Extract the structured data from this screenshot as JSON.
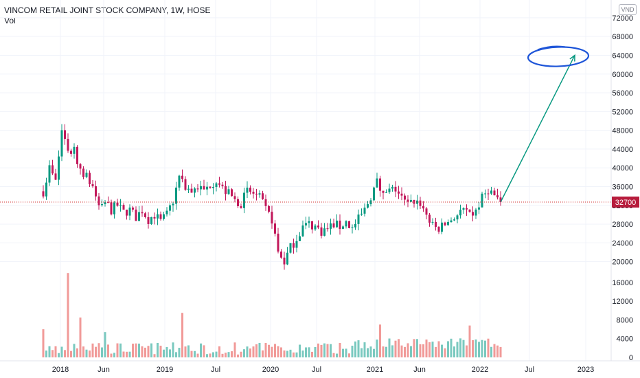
{
  "legend": {
    "title": "VINCOM RETAIL JOINT STOCK COMPANY, 1W, HOSE",
    "sub": "Vol"
  },
  "currency": "VND",
  "current_price_label": "32700",
  "colors": {
    "up": "#26a69a",
    "down": "#ef5350",
    "candle_up": "#089981",
    "candle_down": "#c2185b",
    "vol_up": "#7ac9bf",
    "vol_down": "#f19a98",
    "arrow": "#089981",
    "circle": "#1e55d8",
    "price_line": "#d32f2f",
    "grid": "#f0f3fa"
  },
  "chart_data": {
    "type": "candlestick",
    "title": "VINCOM RETAIL JOINT STOCK COMPANY, 1W, HOSE",
    "interval": "1W",
    "exchange": "HOSE",
    "y_axis": {
      "ticks": [
        20000,
        24000,
        28000,
        32000,
        36000,
        40000,
        44000,
        48000,
        52000,
        56000,
        60000,
        64000,
        68000,
        72000
      ],
      "range": [
        16000,
        72000
      ],
      "position": "right"
    },
    "volume_axis": {
      "ticks": [
        0,
        4000,
        8000,
        12000,
        16000
      ],
      "range": [
        0,
        16000
      ]
    },
    "x_axis": {
      "ticks": [
        "2018",
        "Jun",
        "2019",
        "Jul",
        "2020",
        "Jul",
        "2021",
        "Jun",
        "2022",
        "Jul",
        "2023"
      ]
    },
    "current_price": 32700,
    "price_path": [
      [
        0,
        35000
      ],
      [
        2,
        40000
      ],
      [
        4,
        37000
      ],
      [
        6,
        48000
      ],
      [
        8,
        44000
      ],
      [
        10,
        43500
      ],
      [
        12,
        40000
      ],
      [
        14,
        38000
      ],
      [
        16,
        36000
      ],
      [
        18,
        32000
      ],
      [
        20,
        33000
      ],
      [
        22,
        31000
      ],
      [
        24,
        32000
      ],
      [
        26,
        30500
      ],
      [
        28,
        31000
      ],
      [
        30,
        29500
      ],
      [
        32,
        31000
      ],
      [
        34,
        29000
      ],
      [
        36,
        30000
      ],
      [
        38,
        28500
      ],
      [
        40,
        30000
      ],
      [
        42,
        33000
      ],
      [
        44,
        38000
      ],
      [
        46,
        36000
      ],
      [
        48,
        35000
      ],
      [
        50,
        36000
      ],
      [
        52,
        35000
      ],
      [
        54,
        36500
      ],
      [
        56,
        37500
      ],
      [
        58,
        35500
      ],
      [
        60,
        34500
      ],
      [
        62,
        33000
      ],
      [
        64,
        32500
      ],
      [
        66,
        35000
      ],
      [
        68,
        34500
      ],
      [
        70,
        33500
      ],
      [
        72,
        31000
      ],
      [
        74,
        29000
      ],
      [
        76,
        22000
      ],
      [
        78,
        20000
      ],
      [
        80,
        23000
      ],
      [
        82,
        25000
      ],
      [
        84,
        27500
      ],
      [
        86,
        28000
      ],
      [
        88,
        27500
      ],
      [
        90,
        26500
      ],
      [
        92,
        27000
      ],
      [
        94,
        28000
      ],
      [
        96,
        27500
      ],
      [
        98,
        28500
      ],
      [
        100,
        27000
      ],
      [
        102,
        29000
      ],
      [
        104,
        31000
      ],
      [
        106,
        34000
      ],
      [
        108,
        37000
      ],
      [
        110,
        34000
      ],
      [
        112,
        35000
      ],
      [
        114,
        35500
      ],
      [
        116,
        33500
      ],
      [
        118,
        32000
      ],
      [
        120,
        33000
      ],
      [
        122,
        32500
      ],
      [
        124,
        30000
      ],
      [
        126,
        27500
      ],
      [
        128,
        27000
      ],
      [
        130,
        28000
      ],
      [
        132,
        29000
      ],
      [
        134,
        30000
      ],
      [
        136,
        31000
      ],
      [
        138,
        29500
      ],
      [
        140,
        31000
      ],
      [
        142,
        33500
      ],
      [
        144,
        35500
      ],
      [
        146,
        34000
      ],
      [
        148,
        32700
      ]
    ],
    "volume_spikes": [
      {
        "week": 0,
        "value": 6000
      },
      {
        "week": 8,
        "value": 18000
      },
      {
        "week": 12,
        "value": 8500
      },
      {
        "week": 20,
        "value": 5400
      },
      {
        "week": 45,
        "value": 9500
      },
      {
        "week": 109,
        "value": 7000
      },
      {
        "week": 138,
        "value": 6800
      }
    ],
    "annotations": [
      {
        "type": "arrow",
        "from": {
          "week": 148,
          "price": 32700
        },
        "to": {
          "date": "2022-11",
          "price": 64000
        }
      },
      {
        "type": "ellipse",
        "center": {
          "date": "2022-11",
          "price": 64000
        }
      }
    ]
  }
}
